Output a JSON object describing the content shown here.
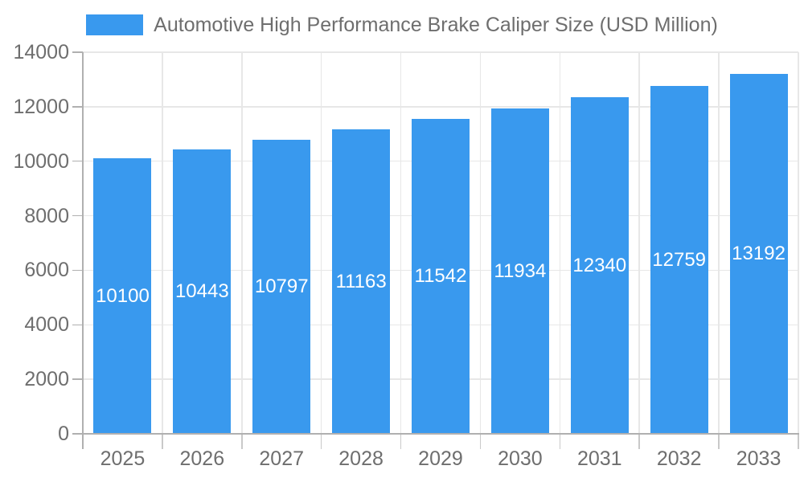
{
  "chart_data": {
    "type": "bar",
    "title": "Automotive High Performance Brake Caliper Size (USD Million)",
    "legend_entries": [
      "Automotive High Performance Brake Caliper Size (USD Million)"
    ],
    "legend_position": "top",
    "categories": [
      "2025",
      "2026",
      "2027",
      "2028",
      "2029",
      "2030",
      "2031",
      "2032",
      "2033"
    ],
    "values": [
      10100,
      10443,
      10797,
      11163,
      11542,
      11934,
      12340,
      12759,
      13192
    ],
    "bar_labels": [
      10100,
      10443,
      10797,
      11163,
      11542,
      11934,
      12340,
      12759,
      13192
    ],
    "xlabel": "",
    "ylabel": "",
    "ylim": [
      0,
      14000
    ],
    "ytick_step": 2000,
    "yticks": [
      0,
      2000,
      4000,
      6000,
      8000,
      10000,
      12000,
      14000
    ],
    "grid": true,
    "colors": {
      "bar": "#3999ee",
      "bar_value_label": "#ffffff",
      "tick_label": "#6e6e6e",
      "legend_text": "#6e6e6e",
      "axis_line": "#b0b0b0",
      "minor_tick": "#c9c9c9",
      "gridline": "#e7e7e7",
      "background": "#ffffff"
    }
  }
}
